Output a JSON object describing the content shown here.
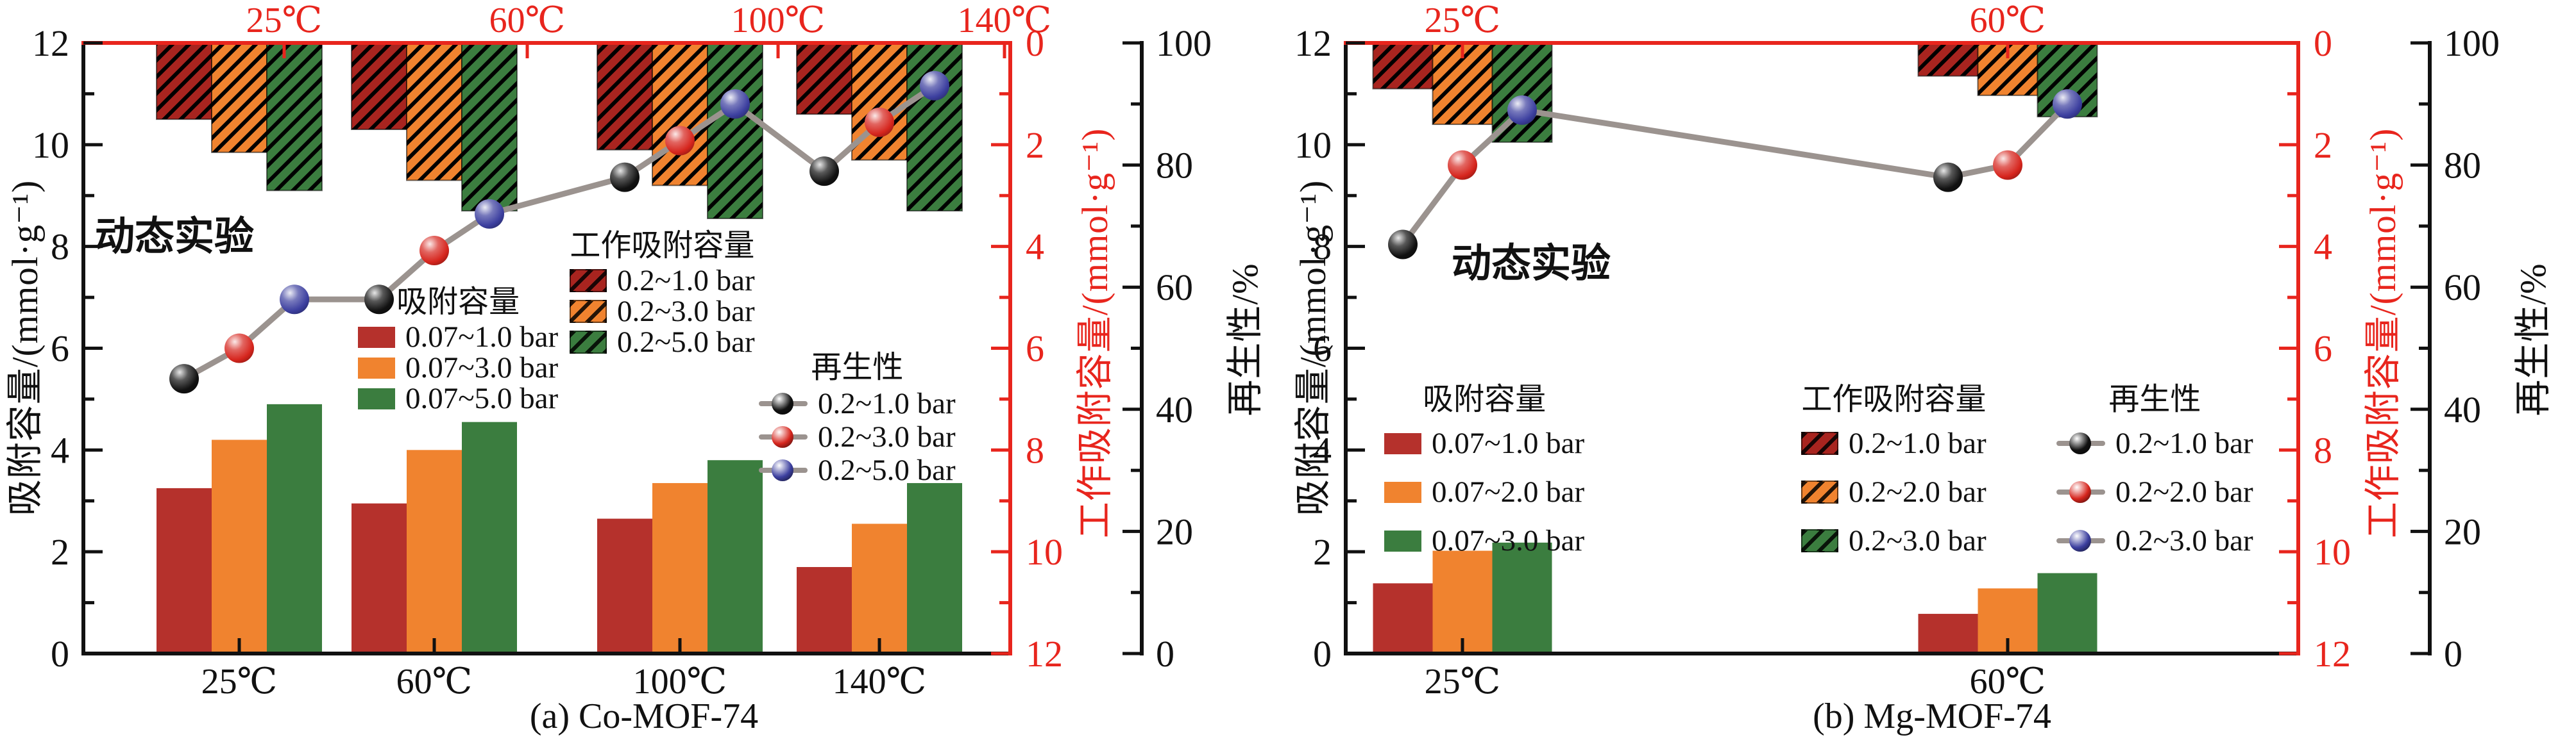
{
  "figure_background": "#ffffff",
  "styles": {
    "axis_red": "#e8251d",
    "axis_black": "#111111",
    "line_gray": "#9b938f"
  },
  "chart_data": [
    {
      "type": "bar",
      "panel": "a",
      "caption": "(a) Co-MOF-74",
      "annotation": "动态实验",
      "categories": [
        "25℃",
        "60℃",
        "100℃",
        "140℃"
      ],
      "axes": {
        "left": {
          "title": "吸附容量/(mmol·g⁻¹)",
          "min": 0,
          "max": 12,
          "major_step": 2,
          "color": "#111111"
        },
        "right_inner": {
          "title": "工作吸附容量/(mmol·g⁻¹)",
          "min": 0,
          "max": 12,
          "major_step": 2,
          "inverted": true,
          "color": "#e8251d"
        },
        "right_outer": {
          "title": "再生性/%",
          "min": 0,
          "max": 100,
          "major_step": 20,
          "color": "#111111"
        },
        "top": {
          "tick_labels": [
            "25℃",
            "60℃",
            "100℃",
            "140℃"
          ],
          "color": "#e8251d"
        }
      },
      "legends": {
        "adsorption_title": "吸附容量",
        "working_title": "工作吸附容量",
        "regeneration_title": "再生性"
      },
      "series": {
        "adsorption": [
          {
            "label": "0.07~1.0 bar",
            "color": "#b5312c",
            "values": [
              3.25,
              2.95,
              2.65,
              1.7
            ]
          },
          {
            "label": "0.07~3.0 bar",
            "color": "#f0832f",
            "values": [
              4.2,
              4.0,
              3.35,
              2.55
            ]
          },
          {
            "label": "0.07~5.0 bar",
            "color": "#3b7d3f",
            "values": [
              4.9,
              4.55,
              3.8,
              3.35
            ]
          }
        ],
        "working": [
          {
            "label": "0.2~1.0 bar",
            "color": "#a8241f",
            "values": [
              1.5,
              1.7,
              2.1,
              1.4
            ]
          },
          {
            "label": "0.2~3.0 bar",
            "color": "#f0832f",
            "values": [
              2.15,
              2.7,
              2.8,
              2.3
            ]
          },
          {
            "label": "0.2~5.0 bar",
            "color": "#3b7d3f",
            "values": [
              2.9,
              3.3,
              3.45,
              3.3
            ]
          }
        ],
        "regeneration": [
          {
            "label": "0.2~1.0 bar",
            "color": "#111111",
            "values": [
              45,
              58,
              78,
              79
            ]
          },
          {
            "label": "0.2~3.0 bar",
            "color": "#d6251d",
            "values": [
              50,
              66,
              84,
              87
            ]
          },
          {
            "label": "0.2~5.0 bar",
            "color": "#3c3f9f",
            "values": [
              58,
              72,
              90,
              93
            ]
          }
        ]
      }
    },
    {
      "type": "bar",
      "panel": "b",
      "caption": "(b) Mg-MOF-74",
      "annotation": "动态实验",
      "categories": [
        "25℃",
        "60℃"
      ],
      "axes": {
        "left": {
          "title": "吸附容量/(mmol·g⁻¹)",
          "min": 0,
          "max": 12,
          "major_step": 2,
          "color": "#111111"
        },
        "right_inner": {
          "title": "工作吸附容量/(mmol·g⁻¹)",
          "min": 0,
          "max": 12,
          "major_step": 2,
          "inverted": true,
          "color": "#e8251d"
        },
        "right_outer": {
          "title": "再生性/%",
          "min": 0,
          "max": 100,
          "major_step": 20,
          "color": "#111111"
        },
        "top": {
          "tick_labels": [
            "25℃",
            "60℃"
          ],
          "color": "#e8251d"
        }
      },
      "legends": {
        "adsorption_title": "吸附容量",
        "working_title": "工作吸附容量",
        "regeneration_title": "再生性"
      },
      "series": {
        "adsorption": [
          {
            "label": "0.07~1.0 bar",
            "color": "#b5312c",
            "values": [
              1.38,
              0.78
            ]
          },
          {
            "label": "0.07~2.0 bar",
            "color": "#f0832f",
            "values": [
              2.02,
              1.28
            ]
          },
          {
            "label": "0.07~3.0 bar",
            "color": "#3b7d3f",
            "values": [
              2.18,
              1.58
            ]
          }
        ],
        "working": [
          {
            "label": "0.2~1.0 bar",
            "color": "#a8241f",
            "values": [
              0.9,
              0.65
            ]
          },
          {
            "label": "0.2~2.0 bar",
            "color": "#f0832f",
            "values": [
              1.6,
              1.03
            ]
          },
          {
            "label": "0.2~3.0 bar",
            "color": "#3b7d3f",
            "values": [
              1.95,
              1.45
            ]
          }
        ],
        "regeneration": [
          {
            "label": "0.2~1.0 bar",
            "color": "#111111",
            "values": [
              67,
              78
            ]
          },
          {
            "label": "0.2~2.0 bar",
            "color": "#d6251d",
            "values": [
              80,
              80
            ]
          },
          {
            "label": "0.2~3.0 bar",
            "color": "#3c3f9f",
            "values": [
              89,
              90
            ]
          }
        ]
      }
    }
  ]
}
